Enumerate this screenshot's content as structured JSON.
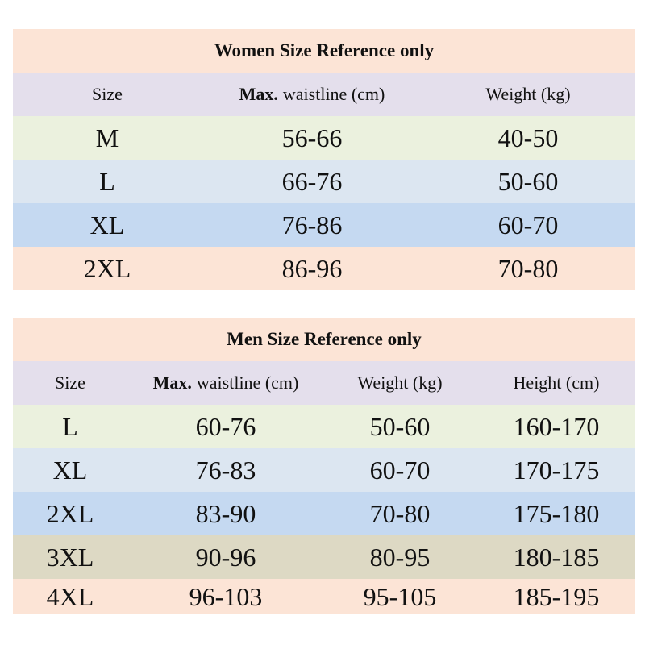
{
  "tables": [
    {
      "title": "Women Size Reference only",
      "header": [
        "Size",
        {
          "bold": "Max.",
          "text": "waistline (cm)"
        },
        "Weight (kg)"
      ],
      "rows": [
        [
          "M",
          "56-66",
          "40-50"
        ],
        [
          "L",
          "66-76",
          "50-60"
        ],
        [
          "XL",
          "76-86",
          "60-70"
        ],
        [
          "2XL",
          "86-96",
          "70-80"
        ]
      ]
    },
    {
      "title": "Men Size Reference only",
      "header": [
        "Size",
        {
          "bold": "Max.",
          "text": "waistline (cm)"
        },
        "Weight (kg)",
        "Height (cm)"
      ],
      "rows": [
        [
          "L",
          "60-76",
          "50-60",
          "160-170"
        ],
        [
          "XL",
          "76-83",
          "60-70",
          "170-175"
        ],
        [
          "2XL",
          "83-90",
          "70-80",
          "175-180"
        ],
        [
          "3XL",
          "90-96",
          "80-95",
          "180-185"
        ],
        [
          "4XL",
          "96-103",
          "95-105",
          "185-195"
        ]
      ]
    }
  ]
}
